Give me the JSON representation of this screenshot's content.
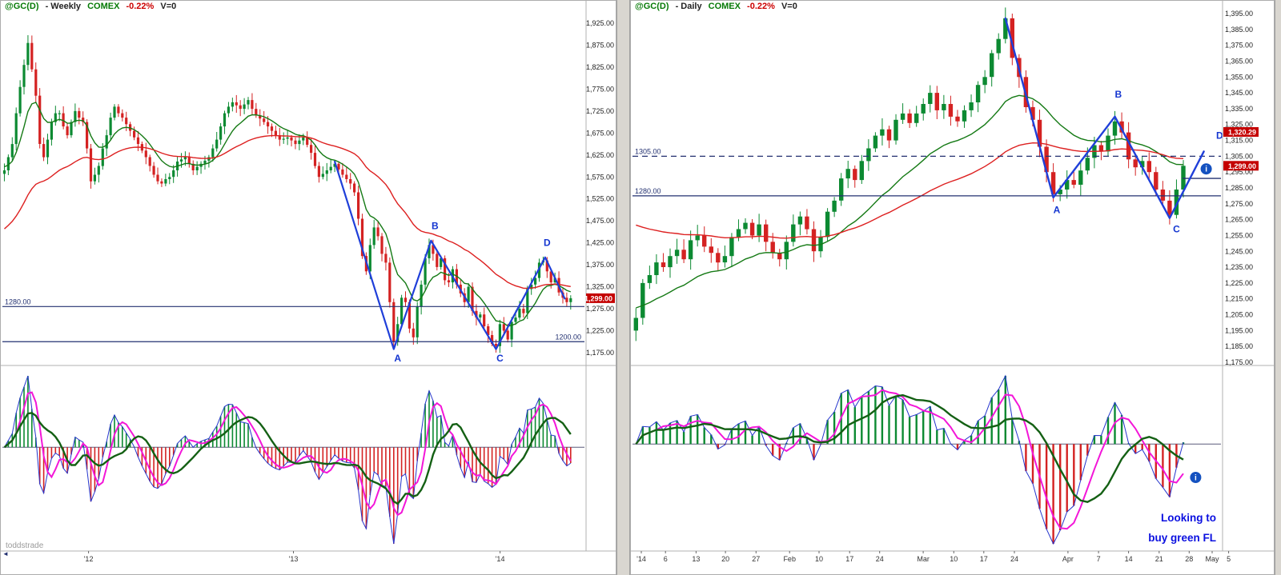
{
  "ui": {
    "info_icon_glyph": "i",
    "scroll_arrow_icon": "◄"
  },
  "colors": {
    "up": "#0c8a32",
    "down": "#d42222",
    "ma_fast": "#157a15",
    "ma_slow": "#dd2020",
    "zigzag": "#1f3fd9",
    "navy_line": "#223070",
    "swing_label": "#1536d0",
    "badge_bg": "#c40000",
    "badge_text": "#ffffff",
    "osc_fast": "#f316d8",
    "osc_slow": "#146014",
    "envelope": "#2535cc",
    "axis_text": "#222222",
    "note_text": "#0b10e0"
  },
  "chart_data": [
    {
      "type": "candlestick",
      "title": "@GC(D) - Weekly COMEX",
      "timeframe": "Weekly",
      "header": {
        "symbol": "@GC(D)",
        "name_suffix": "- Weekly",
        "exchange": "COMEX",
        "change": "-0.22%",
        "volume": "V=0"
      },
      "price_axis": {
        "min": 1175,
        "max": 1925,
        "step": 50,
        "ticks": [
          "1,925.00",
          "1,875.00",
          "1,825.00",
          "1,775.00",
          "1,725.00",
          "1,675.00",
          "1,625.00",
          "1,575.00",
          "1,525.00",
          "1,475.00",
          "1,425.00",
          "1,375.00",
          "1,325.00",
          "1,275.00",
          "1,225.00",
          "1,175.00"
        ]
      },
      "slots": 148,
      "closes": [
        1590,
        1620,
        1650,
        1720,
        1780,
        1830,
        1880,
        1820,
        1760,
        1650,
        1620,
        1660,
        1700,
        1720,
        1720,
        1690,
        1670,
        1700,
        1725,
        1710,
        1700,
        1640,
        1565,
        1580,
        1600,
        1640,
        1670,
        1710,
        1735,
        1720,
        1710,
        1695,
        1680,
        1665,
        1650,
        1635,
        1620,
        1600,
        1580,
        1565,
        1560,
        1570,
        1575,
        1590,
        1610,
        1615,
        1620,
        1605,
        1590,
        1598,
        1605,
        1612,
        1620,
        1640,
        1660,
        1690,
        1720,
        1735,
        1745,
        1738,
        1730,
        1740,
        1750,
        1730,
        1715,
        1708,
        1700,
        1690,
        1680,
        1670,
        1660,
        1662,
        1665,
        1658,
        1650,
        1658,
        1665,
        1648,
        1630,
        1600,
        1575,
        1582,
        1590,
        1598,
        1605,
        1592,
        1580,
        1570,
        1560,
        1540,
        1480,
        1395,
        1360,
        1420,
        1460,
        1440,
        1400,
        1380,
        1290,
        1200,
        1240,
        1300,
        1290,
        1230,
        1210,
        1280,
        1330,
        1390,
        1420,
        1400,
        1370,
        1390,
        1340,
        1335,
        1365,
        1330,
        1310,
        1290,
        1325,
        1270,
        1255,
        1262,
        1235,
        1215,
        1195,
        1190,
        1240,
        1225,
        1205,
        1245,
        1255,
        1275,
        1265,
        1320,
        1330,
        1345,
        1380,
        1385,
        1360,
        1335,
        1345,
        1312,
        1300,
        1290,
        1299
      ],
      "ma": {
        "fast_period": 10,
        "fast_init": 1600,
        "slow_period": 40,
        "slow_init": 1450
      },
      "indicator": {
        "type": "oscillator",
        "period": 12,
        "fast": 4,
        "slow": 10
      },
      "zigzag": [
        [
          84,
          1610
        ],
        [
          99,
          1183
        ],
        [
          108.5,
          1430
        ],
        [
          125,
          1183
        ],
        [
          137.5,
          1392
        ],
        [
          142.5,
          1298
        ]
      ],
      "swing_labels": [
        {
          "t": "A",
          "i": 100,
          "p": 1155
        },
        {
          "t": "B",
          "i": 109.5,
          "p": 1456
        },
        {
          "t": "C",
          "i": 126,
          "p": 1155
        },
        {
          "t": "D",
          "i": 138,
          "p": 1418
        }
      ],
      "hlines": [
        {
          "p": 1280,
          "label": "1280.00",
          "side": "left",
          "dash": false
        },
        {
          "p": 1200,
          "label": "1200.00",
          "side": "right",
          "dash": false
        }
      ],
      "badges": [
        {
          "p": 1299,
          "text": "1,299.00"
        }
      ],
      "x_labels": [
        {
          "f": 0.148,
          "t": "'12"
        },
        {
          "f": 0.5,
          "t": "'13"
        },
        {
          "f": 0.855,
          "t": "'14"
        }
      ],
      "watermark": "toddstrade"
    },
    {
      "type": "candlestick",
      "title": "@GC(D) - Daily COMEX",
      "timeframe": "Daily",
      "header": {
        "symbol": "@GC(D)",
        "name_suffix": "- Daily",
        "exchange": "COMEX",
        "change": "-0.22%",
        "volume": "V=0"
      },
      "price_axis": {
        "min": 1175,
        "max": 1395,
        "step": 10,
        "ticks": [
          "1,395.00",
          "1,385.00",
          "1,375.00",
          "1,365.00",
          "1,355.00",
          "1,345.00",
          "1,335.00",
          "1,325.00",
          "1,315.00",
          "1,305.00",
          "1,295.00",
          "1,285.00",
          "1,275.00",
          "1,265.00",
          "1,255.00",
          "1,245.00",
          "1,235.00",
          "1,225.00",
          "1,215.00",
          "1,205.00",
          "1,195.00",
          "1,185.00",
          "1,175.00"
        ]
      },
      "slots": 86,
      "closes": [
        1203,
        1225,
        1230,
        1238,
        1235,
        1242,
        1246,
        1240,
        1252,
        1255,
        1248,
        1244,
        1238,
        1242,
        1254,
        1259,
        1263,
        1255,
        1262,
        1251,
        1244,
        1240,
        1251,
        1262,
        1267,
        1259,
        1245,
        1254,
        1270,
        1277,
        1291,
        1297,
        1290,
        1302,
        1310,
        1318,
        1322,
        1315,
        1328,
        1332,
        1326,
        1332,
        1338,
        1345,
        1334,
        1338,
        1330,
        1327,
        1334,
        1339,
        1350,
        1355,
        1370,
        1379,
        1392,
        1367,
        1355,
        1336,
        1328,
        1311,
        1295,
        1281,
        1284,
        1290,
        1287,
        1296,
        1304,
        1312,
        1308,
        1318,
        1327,
        1320,
        1303,
        1298,
        1302,
        1295,
        1284,
        1277,
        1268,
        1284,
        1299
      ],
      "ma": {
        "fast_period": 20,
        "fast_init": 1210,
        "slow_period": 50,
        "slow_init": 1264
      },
      "indicator": {
        "type": "oscillator",
        "period": 12,
        "fast": 4,
        "slow": 10
      },
      "zigzag": [
        [
          54,
          1392
        ],
        [
          61,
          1279
        ],
        [
          70,
          1330
        ],
        [
          78,
          1266
        ],
        [
          83,
          1308
        ]
      ],
      "swing_labels": [
        {
          "t": "A",
          "i": 61.5,
          "p": 1269
        },
        {
          "t": "B",
          "i": 70.5,
          "p": 1342
        },
        {
          "t": "C",
          "i": 79,
          "p": 1257
        },
        {
          "t": "D",
          "i": 85.3,
          "p": 1316
        }
      ],
      "hlines": [
        {
          "p": 1305,
          "label": "1305.00",
          "side": "left",
          "dash": true
        },
        {
          "p": 1280,
          "label": "1280.00",
          "side": "left",
          "dash": false
        }
      ],
      "order_line": {
        "p": 1291,
        "from_frac": 0.935
      },
      "badges": [
        {
          "p": 1320.3,
          "text": "1,320.29"
        },
        {
          "p": 1299,
          "text": "1,299.00"
        }
      ],
      "x_labels": [
        {
          "f": 0.015,
          "t": "'14"
        },
        {
          "f": 0.056,
          "t": "6"
        },
        {
          "f": 0.108,
          "t": "13"
        },
        {
          "f": 0.158,
          "t": "20"
        },
        {
          "f": 0.21,
          "t": "27"
        },
        {
          "f": 0.267,
          "t": "Feb"
        },
        {
          "f": 0.317,
          "t": "10"
        },
        {
          "f": 0.369,
          "t": "17"
        },
        {
          "f": 0.42,
          "t": "24"
        },
        {
          "f": 0.494,
          "t": "Mar"
        },
        {
          "f": 0.546,
          "t": "10"
        },
        {
          "f": 0.597,
          "t": "17"
        },
        {
          "f": 0.649,
          "t": "24"
        },
        {
          "f": 0.74,
          "t": "Apr"
        },
        {
          "f": 0.792,
          "t": "7"
        },
        {
          "f": 0.843,
          "t": "14"
        },
        {
          "f": 0.895,
          "t": "21"
        },
        {
          "f": 0.946,
          "t": "28"
        },
        {
          "f": 0.985,
          "t": "May"
        },
        {
          "f": 1.013,
          "t": "5"
        }
      ],
      "info_icons": [
        {
          "where": "price",
          "p": 1297,
          "f": 0.975
        },
        {
          "where": "osc",
          "f": 0.957,
          "y_frac": 0.6
        }
      ],
      "note": [
        "Looking to",
        "buy green FL"
      ]
    }
  ]
}
